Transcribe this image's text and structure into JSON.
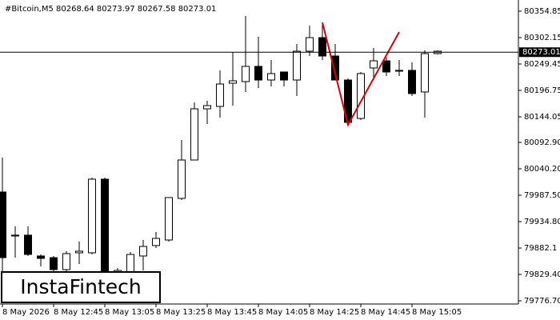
{
  "chart_data": {
    "type": "candlestick",
    "title": "#Bitcoin,M5  80268.64 80273.97 80267.58 80273.01",
    "watermark": "InstaFintech",
    "categories": [
      "8 May 2026",
      null,
      null,
      null,
      "8 May 12:45",
      null,
      null,
      null,
      "8 May 13:05",
      null,
      null,
      null,
      "8 May 13:25",
      null,
      null,
      null,
      "8 May 13:45",
      null,
      null,
      null,
      "8 May 14:05",
      null,
      null,
      null,
      "8 May 14:25",
      null,
      null,
      null,
      "8 May 14:45",
      null,
      null,
      null,
      "8 May 15:05",
      null,
      null
    ],
    "open": [
      79993.9,
      79906.1,
      79907.8,
      79866.2,
      79862.9,
      79839.0,
      79872.6,
      79872.6,
      80019.5,
      79826.2,
      79826.2,
      79866.2,
      79887.0,
      79898.1,
      79981.2,
      80057.8,
      80160.0,
      80164.8,
      80211.1,
      80214.3,
      80244.7,
      80217.5,
      80233.5,
      80217.5,
      80275.0,
      80302.1,
      80265.4,
      80217.5,
      80140.8,
      80241.5,
      80255.8,
      80235.1,
      80236.7,
      80193.6,
      80270.2
    ],
    "high": [
      80062.6,
      79925.3,
      79925.3,
      79869.3,
      79866.2,
      79875.8,
      79894.9,
      80022.7,
      80022.7,
      79842.2,
      79874.1,
      79898.1,
      79914.1,
      79982.8,
      80097.7,
      80172.8,
      80176.0,
      80236.7,
      80273.4,
      80345.3,
      80303.7,
      80257.4,
      80233.5,
      80289.4,
      80326.1,
      80329.3,
      80289.4,
      80220.7,
      80233.5,
      80281.4,
      80262.2,
      80257.4,
      80252.6,
      80276.6,
      80276.6
    ],
    "low": [
      79834.2,
      79862.9,
      79866.2,
      79845.4,
      79834.2,
      79834.2,
      79850.2,
      79869.3,
      79773.5,
      79818.2,
      79818.2,
      79837.4,
      79882.1,
      79894.9,
      79978.0,
      80057.8,
      80129.7,
      80142.5,
      80166.4,
      80193.6,
      80201.5,
      80204.7,
      80204.7,
      80185.6,
      80265.4,
      80257.4,
      80217.5,
      80128.0,
      80137.7,
      80217.5,
      80225.5,
      80225.5,
      80185.6,
      80142.5,
      80268.6
    ],
    "close": [
      79862.9,
      79907.8,
      79869.3,
      79861.4,
      79839.0,
      79870.9,
      79875.8,
      80019.5,
      79786.3,
      79837.4,
      79869.3,
      79885.3,
      79901.3,
      79982.8,
      80057.8,
      80160.0,
      80166.4,
      80209.5,
      80215.9,
      80244.7,
      80217.5,
      80230.3,
      80217.5,
      80275.0,
      80302.1,
      80265.4,
      80217.5,
      80132.9,
      80230.3,
      80255.8,
      80233.5,
      80236.7,
      80190.4,
      80270.2,
      80275.0
    ],
    "current_price": 80273.01,
    "ylim": [
      79770.35,
      80369.22
    ],
    "yticks": [
      80354.85,
      80302.15,
      80249.45,
      80196.75,
      80144.05,
      {
        "value": 80092.9,
        "label": "80092.90"
      },
      {
        "value": 80040.2,
        "label": "80040.20"
      },
      {
        "value": 79987.5,
        "label": "79987.50"
      },
      {
        "value": 79934.8,
        "label": "79934.80"
      },
      79882.1,
      {
        "value": 79829.4,
        "label": "79829.40"
      },
      {
        "value": 79776.7,
        "label": "79776.70"
      }
    ],
    "up_color": "#ffffff",
    "down_color": "#000000",
    "line_color": "#000000"
  }
}
